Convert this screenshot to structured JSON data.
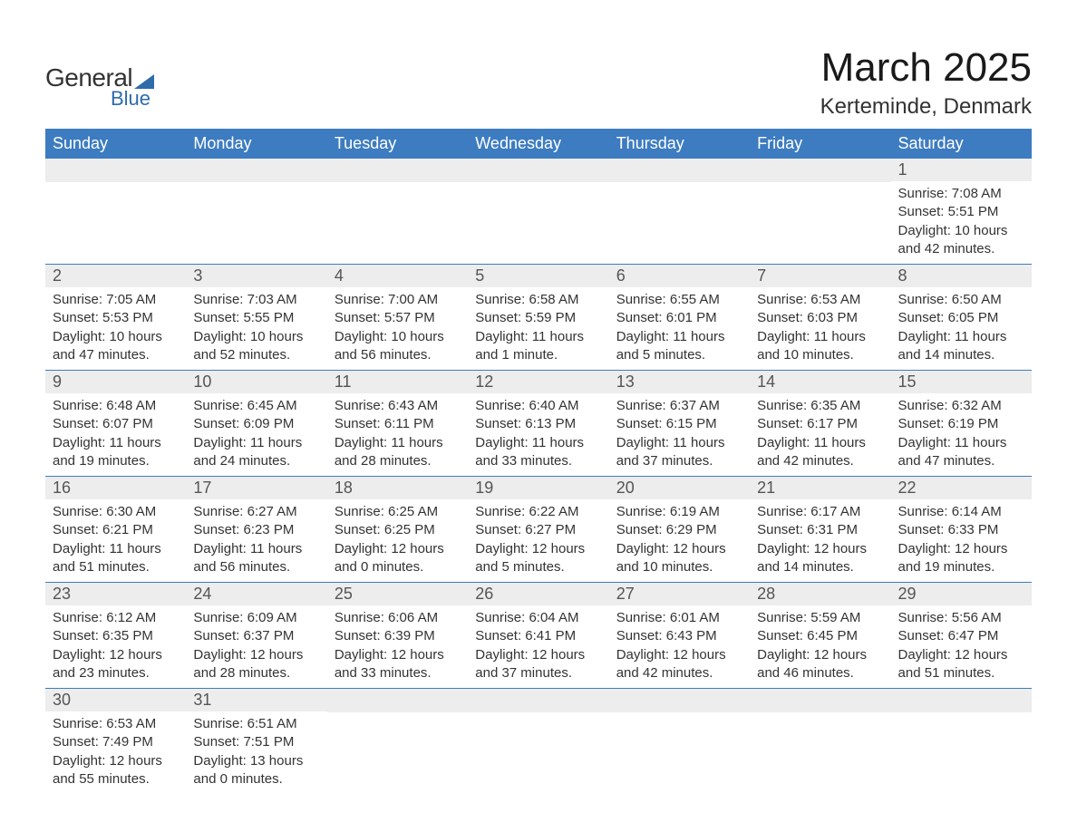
{
  "logo": {
    "text1": "General",
    "text2": "Blue",
    "accent": "#2e6bab"
  },
  "title": {
    "month": "March 2025",
    "location": "Kerteminde, Denmark"
  },
  "style": {
    "header_bg": "#3d7cc0",
    "header_fg": "#ffffff",
    "daynum_bg": "#ededed",
    "daynum_fg": "#555555",
    "body_fg": "#333333",
    "row_border": "#3d7cc0",
    "page_bg": "#ffffff",
    "title_fontsize": 44,
    "location_fontsize": 24,
    "header_fontsize": 18,
    "daynum_fontsize": 18,
    "body_fontsize": 15
  },
  "day_labels": [
    "Sunday",
    "Monday",
    "Tuesday",
    "Wednesday",
    "Thursday",
    "Friday",
    "Saturday"
  ],
  "weeks": [
    [
      null,
      null,
      null,
      null,
      null,
      null,
      {
        "n": "1",
        "sr": "Sunrise: 7:08 AM",
        "ss": "Sunset: 5:51 PM",
        "dl": "Daylight: 10 hours and 42 minutes."
      }
    ],
    [
      {
        "n": "2",
        "sr": "Sunrise: 7:05 AM",
        "ss": "Sunset: 5:53 PM",
        "dl": "Daylight: 10 hours and 47 minutes."
      },
      {
        "n": "3",
        "sr": "Sunrise: 7:03 AM",
        "ss": "Sunset: 5:55 PM",
        "dl": "Daylight: 10 hours and 52 minutes."
      },
      {
        "n": "4",
        "sr": "Sunrise: 7:00 AM",
        "ss": "Sunset: 5:57 PM",
        "dl": "Daylight: 10 hours and 56 minutes."
      },
      {
        "n": "5",
        "sr": "Sunrise: 6:58 AM",
        "ss": "Sunset: 5:59 PM",
        "dl": "Daylight: 11 hours and 1 minute."
      },
      {
        "n": "6",
        "sr": "Sunrise: 6:55 AM",
        "ss": "Sunset: 6:01 PM",
        "dl": "Daylight: 11 hours and 5 minutes."
      },
      {
        "n": "7",
        "sr": "Sunrise: 6:53 AM",
        "ss": "Sunset: 6:03 PM",
        "dl": "Daylight: 11 hours and 10 minutes."
      },
      {
        "n": "8",
        "sr": "Sunrise: 6:50 AM",
        "ss": "Sunset: 6:05 PM",
        "dl": "Daylight: 11 hours and 14 minutes."
      }
    ],
    [
      {
        "n": "9",
        "sr": "Sunrise: 6:48 AM",
        "ss": "Sunset: 6:07 PM",
        "dl": "Daylight: 11 hours and 19 minutes."
      },
      {
        "n": "10",
        "sr": "Sunrise: 6:45 AM",
        "ss": "Sunset: 6:09 PM",
        "dl": "Daylight: 11 hours and 24 minutes."
      },
      {
        "n": "11",
        "sr": "Sunrise: 6:43 AM",
        "ss": "Sunset: 6:11 PM",
        "dl": "Daylight: 11 hours and 28 minutes."
      },
      {
        "n": "12",
        "sr": "Sunrise: 6:40 AM",
        "ss": "Sunset: 6:13 PM",
        "dl": "Daylight: 11 hours and 33 minutes."
      },
      {
        "n": "13",
        "sr": "Sunrise: 6:37 AM",
        "ss": "Sunset: 6:15 PM",
        "dl": "Daylight: 11 hours and 37 minutes."
      },
      {
        "n": "14",
        "sr": "Sunrise: 6:35 AM",
        "ss": "Sunset: 6:17 PM",
        "dl": "Daylight: 11 hours and 42 minutes."
      },
      {
        "n": "15",
        "sr": "Sunrise: 6:32 AM",
        "ss": "Sunset: 6:19 PM",
        "dl": "Daylight: 11 hours and 47 minutes."
      }
    ],
    [
      {
        "n": "16",
        "sr": "Sunrise: 6:30 AM",
        "ss": "Sunset: 6:21 PM",
        "dl": "Daylight: 11 hours and 51 minutes."
      },
      {
        "n": "17",
        "sr": "Sunrise: 6:27 AM",
        "ss": "Sunset: 6:23 PM",
        "dl": "Daylight: 11 hours and 56 minutes."
      },
      {
        "n": "18",
        "sr": "Sunrise: 6:25 AM",
        "ss": "Sunset: 6:25 PM",
        "dl": "Daylight: 12 hours and 0 minutes."
      },
      {
        "n": "19",
        "sr": "Sunrise: 6:22 AM",
        "ss": "Sunset: 6:27 PM",
        "dl": "Daylight: 12 hours and 5 minutes."
      },
      {
        "n": "20",
        "sr": "Sunrise: 6:19 AM",
        "ss": "Sunset: 6:29 PM",
        "dl": "Daylight: 12 hours and 10 minutes."
      },
      {
        "n": "21",
        "sr": "Sunrise: 6:17 AM",
        "ss": "Sunset: 6:31 PM",
        "dl": "Daylight: 12 hours and 14 minutes."
      },
      {
        "n": "22",
        "sr": "Sunrise: 6:14 AM",
        "ss": "Sunset: 6:33 PM",
        "dl": "Daylight: 12 hours and 19 minutes."
      }
    ],
    [
      {
        "n": "23",
        "sr": "Sunrise: 6:12 AM",
        "ss": "Sunset: 6:35 PM",
        "dl": "Daylight: 12 hours and 23 minutes."
      },
      {
        "n": "24",
        "sr": "Sunrise: 6:09 AM",
        "ss": "Sunset: 6:37 PM",
        "dl": "Daylight: 12 hours and 28 minutes."
      },
      {
        "n": "25",
        "sr": "Sunrise: 6:06 AM",
        "ss": "Sunset: 6:39 PM",
        "dl": "Daylight: 12 hours and 33 minutes."
      },
      {
        "n": "26",
        "sr": "Sunrise: 6:04 AM",
        "ss": "Sunset: 6:41 PM",
        "dl": "Daylight: 12 hours and 37 minutes."
      },
      {
        "n": "27",
        "sr": "Sunrise: 6:01 AM",
        "ss": "Sunset: 6:43 PM",
        "dl": "Daylight: 12 hours and 42 minutes."
      },
      {
        "n": "28",
        "sr": "Sunrise: 5:59 AM",
        "ss": "Sunset: 6:45 PM",
        "dl": "Daylight: 12 hours and 46 minutes."
      },
      {
        "n": "29",
        "sr": "Sunrise: 5:56 AM",
        "ss": "Sunset: 6:47 PM",
        "dl": "Daylight: 12 hours and 51 minutes."
      }
    ],
    [
      {
        "n": "30",
        "sr": "Sunrise: 6:53 AM",
        "ss": "Sunset: 7:49 PM",
        "dl": "Daylight: 12 hours and 55 minutes."
      },
      {
        "n": "31",
        "sr": "Sunrise: 6:51 AM",
        "ss": "Sunset: 7:51 PM",
        "dl": "Daylight: 13 hours and 0 minutes."
      },
      null,
      null,
      null,
      null,
      null
    ]
  ]
}
